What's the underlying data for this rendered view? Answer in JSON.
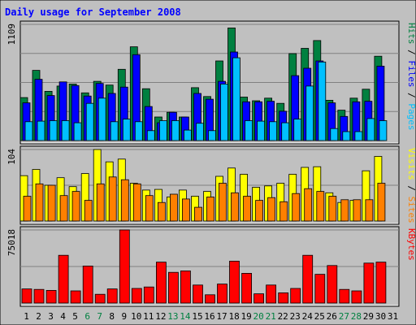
{
  "chart_data": {
    "type": "bar",
    "title": "Daily usage for September 2008",
    "categories": [
      "1",
      "2",
      "3",
      "4",
      "5",
      "6",
      "7",
      "8",
      "9",
      "10",
      "11",
      "12",
      "13",
      "14",
      "15",
      "16",
      "17",
      "18",
      "19",
      "20",
      "21",
      "22",
      "23",
      "24",
      "25",
      "26",
      "27",
      "28",
      "29",
      "30",
      "31"
    ],
    "weekend_days": [
      "6",
      "7",
      "13",
      "14",
      "20",
      "21",
      "27",
      "28"
    ],
    "panels": [
      {
        "name": "hits-files-pages",
        "ymax_label": "1109",
        "ymax": 1109,
        "legend": [
          {
            "text": "Pages",
            "color": "#00c0ff"
          },
          {
            "text": " / ",
            "color": "#000000"
          },
          {
            "text": "Files",
            "color": "#0000ff"
          },
          {
            "text": " / ",
            "color": "#000000"
          },
          {
            "text": "Hits",
            "color": "#008040"
          }
        ],
        "series": [
          {
            "name": "Hits",
            "color": "#008040",
            "values": [
              410,
              670,
              470,
              520,
              540,
              455,
              565,
              530,
              680,
              895,
              495,
              225,
              270,
              225,
              505,
              420,
              760,
              1075,
              415,
              380,
              405,
              355,
              830,
              880,
              955,
              385,
              290,
              405,
              490,
              805,
              0
            ]
          },
          {
            "name": "Files",
            "color": "#0000ff",
            "values": [
              360,
              585,
              430,
              560,
              525,
              425,
              545,
              450,
              510,
              820,
              325,
              170,
              270,
              225,
              450,
              395,
              565,
              845,
              370,
              370,
              375,
              280,
              620,
              690,
              760,
              360,
              230,
              370,
              375,
              710,
              0
            ]
          },
          {
            "name": "Pages",
            "color": "#00c0ff",
            "values": [
              180,
              185,
              190,
              190,
              170,
              355,
              405,
              180,
              205,
              180,
              95,
              190,
              190,
              100,
              165,
              95,
              540,
              790,
              190,
              185,
              180,
              170,
              205,
              520,
              750,
              115,
              85,
              85,
              210,
              190,
              0
            ]
          }
        ]
      },
      {
        "name": "visits-sites",
        "ymax_label": "104",
        "ymax": 104,
        "legend": [
          {
            "text": "Sites",
            "color": "#ff8000"
          },
          {
            "text": " / ",
            "color": "#000000"
          },
          {
            "text": "Visits",
            "color": "#ffff00"
          }
        ],
        "series": [
          {
            "name": "Visits",
            "color": "#ffff00",
            "values": [
              66,
              75,
              52,
              63,
              50,
              69,
              104,
              86,
              90,
              55,
              45,
              46,
              35,
              45,
              36,
              43,
              65,
              77,
              68,
              49,
              51,
              55,
              68,
              78,
              79,
              41,
              27,
              30,
              73,
              94,
              0
            ]
          },
          {
            "name": "Sites",
            "color": "#ff8000",
            "values": [
              36,
              54,
              52,
              37,
              43,
              30,
              54,
              64,
              60,
              54,
              37,
              27,
              39,
              32,
              20,
              35,
              55,
              41,
              36,
              30,
              34,
              28,
              40,
              47,
              43,
              36,
              31,
              31,
              31,
              55,
              0
            ]
          }
        ]
      },
      {
        "name": "kbytes",
        "ymax_label": "75018",
        "ymax": 75018,
        "legend": [
          {
            "text": "KBytes",
            "color": "#ff0000"
          }
        ],
        "series": [
          {
            "name": "KBytes",
            "color": "#ff0000",
            "values": [
              14500,
              14000,
              13000,
              49000,
              12500,
              38000,
              9000,
              14500,
              75018,
              15000,
              16500,
              42000,
              31500,
              33000,
              18500,
              8500,
              19500,
              43000,
              30500,
              9500,
              18500,
              10500,
              15000,
              49000,
              29500,
              38500,
              14000,
              12500,
              41000,
              42000,
              0
            ]
          }
        ]
      }
    ]
  }
}
